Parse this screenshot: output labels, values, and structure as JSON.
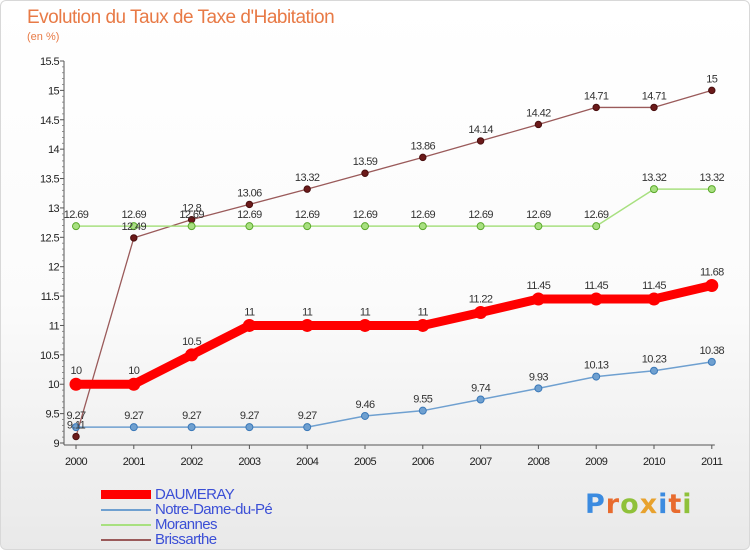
{
  "title": "Evolution du Taux de Taxe d'Habitation",
  "subtitle": "(en %)",
  "logo": {
    "letters": [
      "P",
      "r",
      "o",
      "x",
      "i",
      "t",
      "i"
    ],
    "colors": [
      "#3b8be0",
      "#e86b2e",
      "#8fc13a",
      "#e8a22e",
      "#3b8be0",
      "#e86b2e",
      "#8fc13a"
    ]
  },
  "chart_data": {
    "type": "line",
    "x": [
      "2000",
      "2001",
      "2002",
      "2003",
      "2004",
      "2005",
      "2006",
      "2007",
      "2008",
      "2009",
      "2010",
      "2011"
    ],
    "ylim": [
      9,
      15.5
    ],
    "yticks": [
      "9",
      "9.5",
      "10",
      "10.5",
      "11",
      "11.5",
      "12",
      "12.5",
      "13",
      "13.5",
      "14",
      "14.5",
      "15",
      "15.5"
    ],
    "grid": false,
    "legend_position": "bottom-left",
    "series": [
      {
        "name": "DAUMERAY",
        "color": "#ff0000",
        "label_color": "#333333",
        "width": 9,
        "marker": 6,
        "values": [
          10,
          10,
          10.5,
          11,
          11,
          11,
          11,
          11.22,
          11.45,
          11.45,
          11.45,
          11.68
        ],
        "labels": [
          "10",
          "10",
          "10.5",
          "11",
          "11",
          "11",
          "11",
          "11.22",
          "11.45",
          "11.45",
          "11.45",
          "11.68"
        ]
      },
      {
        "name": "Notre-Dame-du-Pé",
        "color": "#6fa0d0",
        "label_color": "#333333",
        "width": 1.5,
        "marker": 3.5,
        "values": [
          9.27,
          9.27,
          9.27,
          9.27,
          9.27,
          9.46,
          9.55,
          9.74,
          9.93,
          10.13,
          10.23,
          10.38
        ],
        "labels": [
          "9.27",
          "9.27",
          "9.27",
          "9.27",
          "9.27",
          "9.46",
          "9.55",
          "9.74",
          "9.93",
          "10.13",
          "10.23",
          "10.38"
        ]
      },
      {
        "name": "Morannes",
        "color": "#a8e080",
        "label_color": "#333333",
        "width": 1.5,
        "marker": 3.5,
        "values": [
          12.69,
          12.69,
          12.69,
          12.69,
          12.69,
          12.69,
          12.69,
          12.69,
          12.69,
          12.69,
          13.32,
          13.32
        ],
        "labels": [
          "12.69",
          "12.69",
          "12.69",
          "12.69",
          "12.69",
          "12.69",
          "12.69",
          "12.69",
          "12.69",
          "12.69",
          "13.32",
          "13.32"
        ]
      },
      {
        "name": "Brissarthe",
        "color": "#9a5a5a",
        "label_color": "#333333",
        "width": 1.3,
        "marker": 3.2,
        "values": [
          9.11,
          12.49,
          12.8,
          13.06,
          13.32,
          13.59,
          13.86,
          14.14,
          14.42,
          14.71,
          14.71,
          15
        ],
        "labels": [
          "9.11",
          "12.49",
          "12.8",
          "13.06",
          "13.32",
          "13.59",
          "13.86",
          "14.14",
          "14.42",
          "14.71",
          "14.71",
          "15"
        ]
      }
    ]
  }
}
